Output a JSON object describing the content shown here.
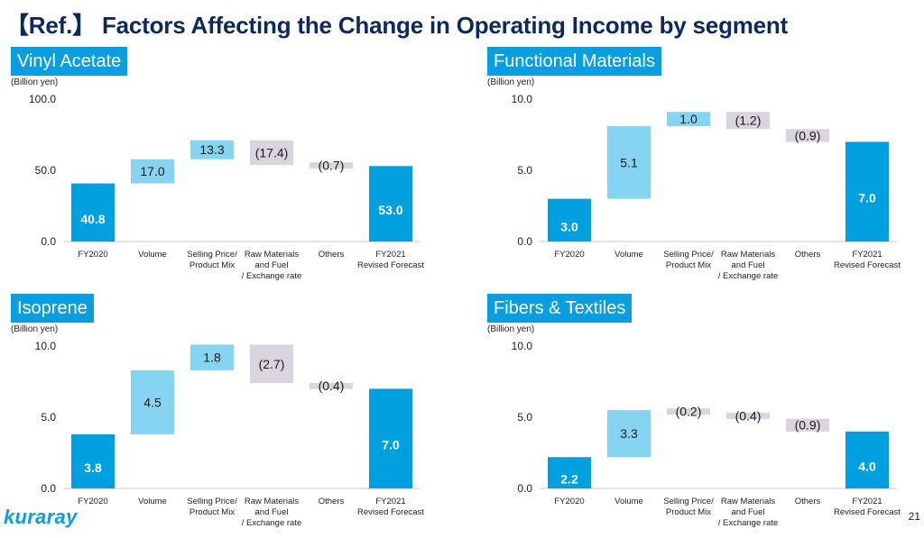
{
  "page": {
    "title": "【Ref.】 Factors Affecting the Change in Operating Income by segment",
    "page_number": "21",
    "logo": "kuraray"
  },
  "colors": {
    "total": "#00a0e0",
    "increase": "#85d5f2",
    "decrease": "#d9d4de",
    "title_bg": "#0a9ee0"
  },
  "chart_data": [
    {
      "type": "waterfall",
      "title": "Vinyl Acetate",
      "ylabel": "(Billion yen)",
      "ylim": [
        0,
        100
      ],
      "yticks": [
        "100.0",
        "50.0",
        "0.0"
      ],
      "categories": [
        "FY2020",
        "Volume",
        "Selling Price/\nProduct Mix",
        "Raw Materials\nand Fuel\n/ Exchange rate",
        "Others",
        "FY2021\nRevised Forecast"
      ],
      "values": [
        40.8,
        17.0,
        13.3,
        -17.4,
        -0.7,
        53.0
      ],
      "labels": [
        "40.8",
        "17.0",
        "13.3",
        "(17.4)",
        "(0.7)",
        "53.0"
      ]
    },
    {
      "type": "waterfall",
      "title": "Functional Materials",
      "ylabel": "(Billion yen)",
      "ylim": [
        0,
        10
      ],
      "yticks": [
        "10.0",
        "5.0",
        "0.0"
      ],
      "categories": [
        "FY2020",
        "Volume",
        "Selling Price/\nProduct Mix",
        "Raw Materials\nand Fuel\n/ Exchange rate",
        "Others",
        "FY2021\nRevised Forecast"
      ],
      "values": [
        3.0,
        5.1,
        1.0,
        -1.2,
        -0.9,
        7.0
      ],
      "labels": [
        "3.0",
        "5.1",
        "1.0",
        "(1.2)",
        "(0.9)",
        "7.0"
      ]
    },
    {
      "type": "waterfall",
      "title": "Isoprene",
      "ylabel": "(Billion yen)",
      "ylim": [
        0,
        10
      ],
      "yticks": [
        "10.0",
        "5.0",
        "0.0"
      ],
      "categories": [
        "FY2020",
        "Volume",
        "Selling Price/\nProduct Mix",
        "Raw Materials\nand Fuel\n/ Exchange rate",
        "Others",
        "FY2021\nRevised Forecast"
      ],
      "values": [
        3.8,
        4.5,
        1.8,
        -2.7,
        -0.4,
        7.0
      ],
      "labels": [
        "3.8",
        "4.5",
        "1.8",
        "(2.7)",
        "(0.4)",
        "7.0"
      ]
    },
    {
      "type": "waterfall",
      "title": "Fibers & Textiles",
      "ylabel": "(Billion yen)",
      "ylim": [
        0,
        10
      ],
      "yticks": [
        "10.0",
        "5.0",
        "0.0"
      ],
      "categories": [
        "FY2020",
        "Volume",
        "Selling Price/\nProduct Mix",
        "Raw Materials\nand Fuel\n/ Exchange rate",
        "Others",
        "FY2021\nRevised Forecast"
      ],
      "values": [
        2.2,
        3.3,
        -0.2,
        -0.4,
        -0.9,
        4.0
      ],
      "labels": [
        "2.2",
        "3.3",
        "(0.2)",
        "(0.4)",
        "(0.9)",
        "4.0"
      ]
    }
  ]
}
